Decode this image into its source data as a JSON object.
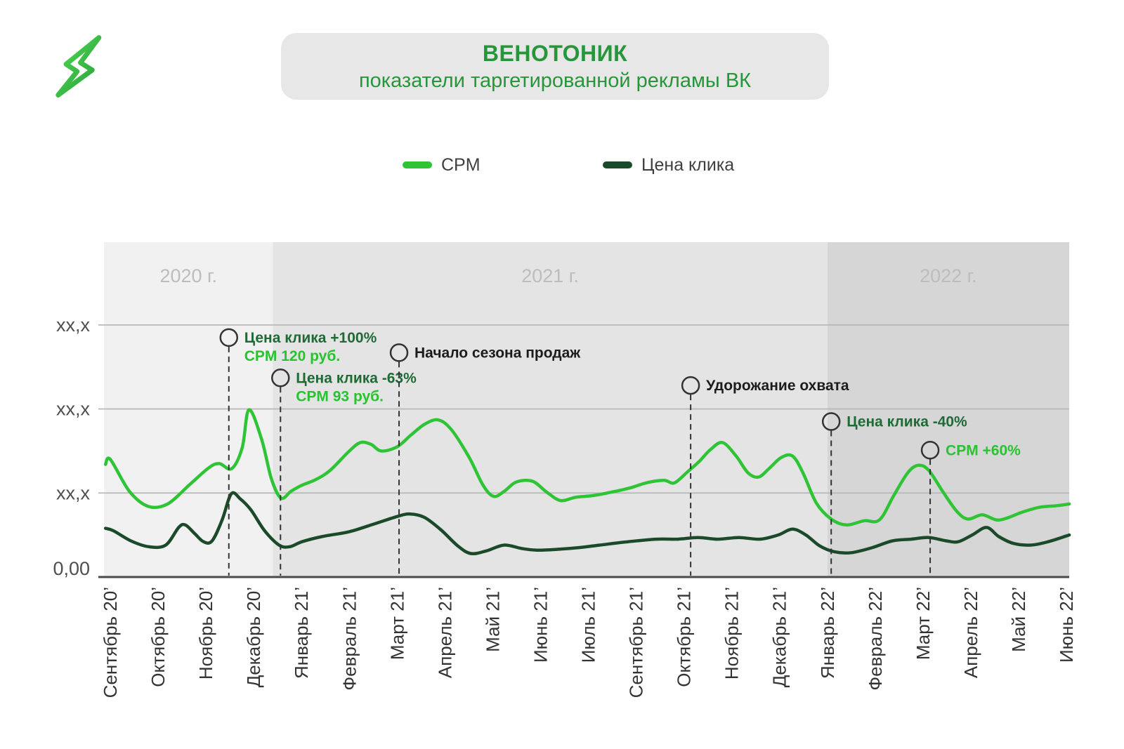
{
  "header": {
    "title": "ВЕНОТОНИК",
    "subtitle": "показатели таргетированной рекламы ВК",
    "accent_color": "#27963b",
    "box_color": "#e7e7e7"
  },
  "logo": {
    "icon": "lightning-bolt-icon",
    "color_light": "#4fd653",
    "color_dark": "#2aa33a"
  },
  "legend": {
    "items": [
      {
        "label": "CPM",
        "color": "#2fc436"
      },
      {
        "label": "Цена клика",
        "color": "#1b4a2a"
      }
    ]
  },
  "chart_data": {
    "type": "line",
    "title": "ВЕНОТОНИК — показатели таргетированной рекламы ВК",
    "xlabel": "",
    "ylabel": "",
    "note": "значения оси Y скрыты (xx,x), значения серий в условных единицах сетки: 1 деление = один интервал между линиями сетки",
    "x_labels": [
      "Сентябрь 20’",
      "Октябрь 20’",
      "Ноябрь 20’",
      "Декабрь 20’",
      "Январь 21’",
      "Февраль 21’",
      "Март 21’",
      "Апрель 21’",
      "Май 21’",
      "Июнь 21’",
      "Июль 21’",
      "Сентябрь 21’",
      "Октябрь 21’",
      "Ноябрь 21’",
      "Декабрь 21’",
      "Январь 22’",
      "Февраль 22’",
      "Март 22’",
      "Апрель 22’",
      "Май 22’",
      "Июнь 22’"
    ],
    "y_ticks": [
      {
        "v": 0,
        "label": "0,00"
      },
      {
        "v": 1,
        "label": "xx,x"
      },
      {
        "v": 2,
        "label": "xx,x"
      },
      {
        "v": 3,
        "label": "xx,x"
      }
    ],
    "ylim": [
      0,
      3.99
    ],
    "grid": true,
    "legend_position": "top",
    "year_bands": [
      {
        "label": "2020 г.",
        "from": -0.13,
        "to": 3.4,
        "color": "#f1f1f1"
      },
      {
        "label": "2021 г.",
        "from": 3.4,
        "to": 15.0,
        "color": "#e4e4e4"
      },
      {
        "label": "2022 г.",
        "from": 15.0,
        "to": 20.06,
        "color": "#d6d6d6"
      }
    ],
    "series": [
      {
        "name": "CPM",
        "color": "#2fc436",
        "points": [
          [
            -0.1,
            1.34
          ],
          [
            0,
            1.4
          ],
          [
            0.4,
            1.02
          ],
          [
            0.8,
            0.84
          ],
          [
            1.2,
            0.87
          ],
          [
            1.66,
            1.1
          ],
          [
            2.06,
            1.3
          ],
          [
            2.28,
            1.35
          ],
          [
            2.54,
            1.29
          ],
          [
            2.76,
            1.54
          ],
          [
            2.9,
            1.99
          ],
          [
            3.16,
            1.65
          ],
          [
            3.37,
            1.17
          ],
          [
            3.57,
            0.94
          ],
          [
            3.78,
            1.02
          ],
          [
            4.0,
            1.09
          ],
          [
            4.3,
            1.16
          ],
          [
            4.6,
            1.27
          ],
          [
            5.0,
            1.5
          ],
          [
            5.23,
            1.6
          ],
          [
            5.45,
            1.58
          ],
          [
            5.67,
            1.5
          ],
          [
            6.0,
            1.55
          ],
          [
            6.29,
            1.69
          ],
          [
            6.58,
            1.82
          ],
          [
            6.86,
            1.87
          ],
          [
            7.14,
            1.75
          ],
          [
            7.51,
            1.42
          ],
          [
            7.8,
            1.09
          ],
          [
            8.02,
            0.96
          ],
          [
            8.24,
            1.02
          ],
          [
            8.49,
            1.13
          ],
          [
            8.83,
            1.14
          ],
          [
            9.13,
            1.01
          ],
          [
            9.42,
            0.91
          ],
          [
            9.74,
            0.95
          ],
          [
            10.11,
            0.97
          ],
          [
            10.48,
            1.01
          ],
          [
            10.87,
            1.06
          ],
          [
            11.21,
            1.12
          ],
          [
            11.58,
            1.15
          ],
          [
            11.8,
            1.12
          ],
          [
            12.07,
            1.25
          ],
          [
            12.31,
            1.37
          ],
          [
            12.56,
            1.52
          ],
          [
            12.81,
            1.6
          ],
          [
            13.09,
            1.44
          ],
          [
            13.34,
            1.24
          ],
          [
            13.56,
            1.19
          ],
          [
            13.78,
            1.29
          ],
          [
            14.03,
            1.42
          ],
          [
            14.27,
            1.44
          ],
          [
            14.49,
            1.24
          ],
          [
            14.77,
            0.88
          ],
          [
            15.08,
            0.69
          ],
          [
            15.4,
            0.62
          ],
          [
            15.77,
            0.67
          ],
          [
            16.09,
            0.68
          ],
          [
            16.39,
            0.97
          ],
          [
            16.68,
            1.24
          ],
          [
            16.9,
            1.33
          ],
          [
            17.12,
            1.27
          ],
          [
            17.41,
            1.02
          ],
          [
            17.71,
            0.78
          ],
          [
            17.94,
            0.69
          ],
          [
            18.24,
            0.74
          ],
          [
            18.53,
            0.68
          ],
          [
            18.75,
            0.7
          ],
          [
            19.07,
            0.77
          ],
          [
            19.44,
            0.83
          ],
          [
            19.81,
            0.85
          ],
          [
            20.06,
            0.87
          ]
        ]
      },
      {
        "name": "Цена клика",
        "color": "#1b4a2a",
        "points": [
          [
            -0.1,
            0.58
          ],
          [
            0.07,
            0.55
          ],
          [
            0.43,
            0.43
          ],
          [
            0.81,
            0.36
          ],
          [
            1.16,
            0.38
          ],
          [
            1.43,
            0.59
          ],
          [
            1.57,
            0.62
          ],
          [
            1.76,
            0.52
          ],
          [
            1.95,
            0.42
          ],
          [
            2.13,
            0.43
          ],
          [
            2.34,
            0.68
          ],
          [
            2.53,
            0.99
          ],
          [
            2.72,
            0.93
          ],
          [
            2.94,
            0.8
          ],
          [
            3.23,
            0.55
          ],
          [
            3.53,
            0.38
          ],
          [
            3.75,
            0.36
          ],
          [
            4.01,
            0.42
          ],
          [
            4.42,
            0.48
          ],
          [
            5.0,
            0.54
          ],
          [
            5.51,
            0.63
          ],
          [
            6.0,
            0.72
          ],
          [
            6.27,
            0.75
          ],
          [
            6.57,
            0.71
          ],
          [
            6.92,
            0.56
          ],
          [
            7.27,
            0.37
          ],
          [
            7.54,
            0.28
          ],
          [
            7.86,
            0.31
          ],
          [
            8.24,
            0.38
          ],
          [
            8.6,
            0.34
          ],
          [
            8.92,
            0.32
          ],
          [
            9.36,
            0.33
          ],
          [
            9.8,
            0.35
          ],
          [
            10.24,
            0.38
          ],
          [
            10.83,
            0.42
          ],
          [
            11.42,
            0.45
          ],
          [
            11.87,
            0.45
          ],
          [
            12.29,
            0.47
          ],
          [
            12.71,
            0.45
          ],
          [
            13.15,
            0.47
          ],
          [
            13.59,
            0.45
          ],
          [
            13.97,
            0.5
          ],
          [
            14.27,
            0.57
          ],
          [
            14.55,
            0.5
          ],
          [
            14.84,
            0.37
          ],
          [
            15.15,
            0.3
          ],
          [
            15.5,
            0.29
          ],
          [
            15.94,
            0.35
          ],
          [
            16.36,
            0.43
          ],
          [
            16.75,
            0.45
          ],
          [
            17.12,
            0.47
          ],
          [
            17.49,
            0.43
          ],
          [
            17.74,
            0.42
          ],
          [
            18.03,
            0.5
          ],
          [
            18.33,
            0.59
          ],
          [
            18.59,
            0.48
          ],
          [
            18.89,
            0.4
          ],
          [
            19.26,
            0.38
          ],
          [
            19.62,
            0.42
          ],
          [
            20.06,
            0.5
          ]
        ]
      }
    ],
    "annotations": [
      {
        "x": 2.48,
        "y": 2.85,
        "lines": [
          {
            "text": "Цена клика +100%",
            "color": "#1e6b35"
          },
          {
            "text": "CPM 120 руб.",
            "color": "#28c32f"
          }
        ]
      },
      {
        "x": 3.56,
        "y": 2.37,
        "lines": [
          {
            "text": "Цена клика -63%",
            "color": "#1e6b35"
          },
          {
            "text": "CPM 93 руб.",
            "color": "#28c32f"
          }
        ]
      },
      {
        "x": 6.04,
        "y": 2.67,
        "lines": [
          {
            "text": "Начало сезона продаж",
            "color": "#1c1c1c"
          }
        ]
      },
      {
        "x": 12.14,
        "y": 2.28,
        "lines": [
          {
            "text": "Удорожание охвата",
            "color": "#1c1c1c"
          }
        ]
      },
      {
        "x": 15.08,
        "y": 1.85,
        "lines": [
          {
            "text": "Цена клика -40%",
            "color": "#1e6b35"
          }
        ]
      },
      {
        "x": 17.15,
        "y": 1.51,
        "lines": [
          {
            "text": "CPM +60%",
            "color": "#28c32f"
          }
        ]
      }
    ]
  }
}
